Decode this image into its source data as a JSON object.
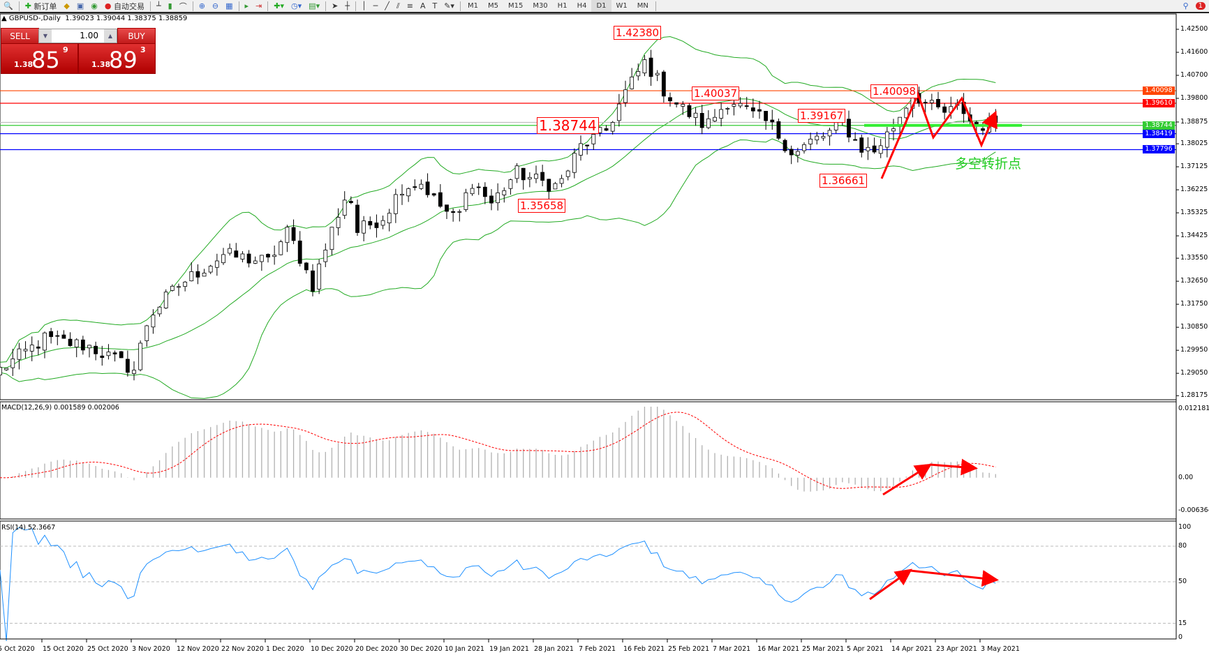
{
  "toolbar": {
    "new_order": "新订单",
    "auto_trading": "自动交易",
    "timeframes": [
      "M1",
      "M5",
      "M15",
      "M30",
      "H1",
      "H4",
      "D1",
      "W1",
      "MN"
    ],
    "active_timeframe": "D1",
    "notification_count": "1"
  },
  "header": {
    "symbol": "GBPUSD-,Daily",
    "ohlc": "1.39023 1.39044 1.38375 1.38859"
  },
  "trade_panel": {
    "sell_label": "SELL",
    "buy_label": "BUY",
    "lots": "1.00",
    "bid": {
      "prefix": "1.38",
      "big": "85",
      "pip": "9"
    },
    "ask": {
      "prefix": "1.38",
      "big": "89",
      "pip": "3"
    }
  },
  "colors": {
    "up_body": "#ffffff",
    "down_body": "#000000",
    "bands": "#22aa22",
    "rsi": "#1e90ff",
    "macd_hist": "#b0b0b0",
    "macd_signal": "#ff0000",
    "annotation": "#ff0000"
  },
  "chart_data": {
    "type": "candlestick",
    "price_ticks": [
      "1.42500",
      "1.41600",
      "1.40700",
      "1.39800",
      "1.38875",
      "1.38025",
      "1.37125",
      "1.36225",
      "1.35325",
      "1.34425",
      "1.33550",
      "1.32650",
      "1.31750",
      "1.30850",
      "1.29950",
      "1.29050",
      "1.28175"
    ],
    "ylim": [
      1.28175,
      1.425
    ],
    "x_labels": [
      "5 Oct 2020",
      "15 Oct 2020",
      "25 Oct 2020",
      "3 Nov 2020",
      "12 Nov 2020",
      "22 Nov 2020",
      "1 Dec 2020",
      "10 Dec 2020",
      "20 Dec 2020",
      "30 Dec 2020",
      "10 Jan 2021",
      "19 Jan 2021",
      "28 Jan 2021",
      "7 Feb 2021",
      "16 Feb 2021",
      "25 Feb 2021",
      "7 Mar 2021",
      "16 Mar 2021",
      "25 Mar 2021",
      "5 Apr 2021",
      "14 Apr 2021",
      "23 Apr 2021",
      "3 May 2021"
    ],
    "close_keypoints": [
      [
        "2020-10-05",
        1.2919
      ],
      [
        "2020-10-15",
        1.304
      ],
      [
        "2020-10-25",
        1.301
      ],
      [
        "2020-11-03",
        1.2919
      ],
      [
        "2020-11-06",
        1.3129
      ],
      [
        "2020-11-12",
        1.3249
      ],
      [
        "2020-11-22",
        1.3369
      ],
      [
        "2020-12-01",
        1.334
      ],
      [
        "2020-12-05",
        1.346
      ],
      [
        "2020-12-10",
        1.325
      ],
      [
        "2020-12-15",
        1.35
      ],
      [
        "2020-12-18",
        1.3625
      ],
      [
        "2020-12-20",
        1.346
      ],
      [
        "2020-12-26",
        1.352
      ],
      [
        "2020-12-30",
        1.3635
      ],
      [
        "2021-01-04",
        1.365
      ],
      [
        "2021-01-07",
        1.358
      ],
      [
        "2021-01-12",
        1.35
      ],
      [
        "2021-01-15",
        1.366
      ],
      [
        "2021-01-19",
        1.357
      ],
      [
        "2021-01-24",
        1.369
      ],
      [
        "2021-01-28",
        1.366
      ],
      [
        "2021-02-02",
        1.3635
      ],
      [
        "2021-02-07",
        1.3792
      ],
      [
        "2021-02-12",
        1.385
      ],
      [
        "2021-02-16",
        1.4003
      ],
      [
        "2021-02-20",
        1.4124
      ],
      [
        "2021-02-24",
        1.4005
      ],
      [
        "2021-02-27",
        1.395
      ],
      [
        "2021-03-05",
        1.387
      ],
      [
        "2021-03-10",
        1.398
      ],
      [
        "2021-03-14",
        1.392
      ],
      [
        "2021-03-18",
        1.388
      ],
      [
        "2021-03-23",
        1.376
      ],
      [
        "2021-03-27",
        1.3815
      ],
      [
        "2021-03-31",
        1.384
      ],
      [
        "2021-04-03",
        1.39
      ],
      [
        "2021-04-07",
        1.379
      ],
      [
        "2021-04-10",
        1.377
      ],
      [
        "2021-04-14",
        1.387
      ],
      [
        "2021-04-18",
        1.4005
      ],
      [
        "2021-04-21",
        1.395
      ],
      [
        "2021-04-25",
        1.392
      ],
      [
        "2021-04-28",
        1.395
      ],
      [
        "2021-05-01",
        1.387
      ],
      [
        "2021-05-06",
        1.3886
      ]
    ],
    "indicators": {
      "bollinger": "20,2"
    },
    "hlines": [
      {
        "price": "1.40098",
        "color": "#ff4500"
      },
      {
        "price": "1.39610",
        "color": "#ff0000"
      },
      {
        "price": "1.38859",
        "color": "#c0c0c0"
      },
      {
        "price": "1.38744",
        "color": "#33cc33"
      },
      {
        "price": "1.38419",
        "color": "#0000ff"
      },
      {
        "price": "1.37796",
        "color": "#0000ff"
      }
    ],
    "annotations": [
      "1.42380",
      "1.40037",
      "1.38744",
      "1.39167",
      "1.35658",
      "1.36661",
      "1.40098"
    ],
    "turning_point_text": "多空转折点",
    "macd": {
      "label": "MACD(12,26,9) 0.001589 0.002006",
      "ticks": [
        "0.012181",
        "0.00",
        "-0.006364"
      ],
      "ylim": [
        -0.006364,
        0.012181
      ]
    },
    "rsi": {
      "label": "RSI(14) 52.3667",
      "ticks": [
        "100",
        "80",
        "50",
        "15",
        "0"
      ],
      "levels": [
        80,
        50,
        15
      ]
    }
  }
}
